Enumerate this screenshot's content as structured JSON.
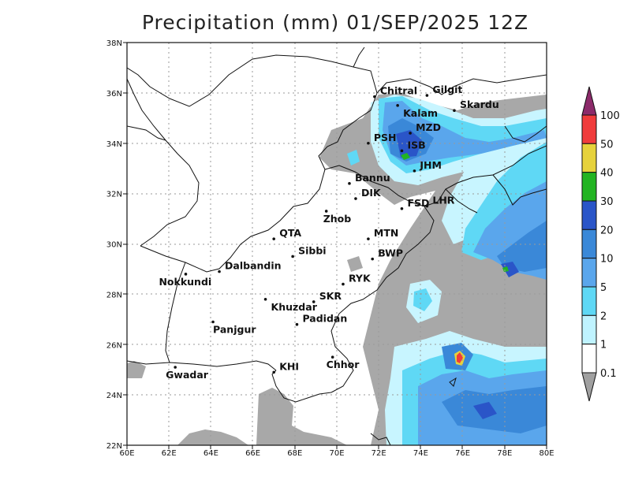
{
  "title": "Precipitation (mm) 01/SEP/2025 12Z",
  "axes": {
    "x_ticks": [
      "60E",
      "62E",
      "64E",
      "66E",
      "68E",
      "70E",
      "72E",
      "74E",
      "76E",
      "78E",
      "80E"
    ],
    "y_ticks": [
      "22N",
      "24N",
      "26N",
      "28N",
      "30N",
      "32N",
      "34N",
      "36N",
      "38N"
    ],
    "xlim": [
      60,
      80
    ],
    "ylim": [
      22,
      38
    ],
    "grid": true
  },
  "colorbar": {
    "levels": [
      "0.1",
      "1",
      "2",
      "5",
      "10",
      "20",
      "30",
      "40",
      "50",
      "100"
    ],
    "colors": [
      "#a0a0a0",
      "#ffffff",
      "#bff3ff",
      "#5fd8f5",
      "#5aa6ec",
      "#3a88d8",
      "#2a55c8",
      "#22b422",
      "#e6d23c",
      "#f03c3c",
      "#8c2a6a"
    ]
  },
  "cities": [
    {
      "name": "Chitral",
      "lon": 71.8,
      "lat": 35.85
    },
    {
      "name": "Gilgit",
      "lon": 74.3,
      "lat": 35.9
    },
    {
      "name": "Kalam",
      "lon": 72.9,
      "lat": 35.5
    },
    {
      "name": "Skardu",
      "lon": 75.6,
      "lat": 35.3
    },
    {
      "name": "MZD",
      "lon": 73.5,
      "lat": 34.4
    },
    {
      "name": "PSH",
      "lon": 71.5,
      "lat": 34.0
    },
    {
      "name": "ISB",
      "lon": 73.1,
      "lat": 33.7
    },
    {
      "name": "JHM",
      "lon": 73.7,
      "lat": 32.9
    },
    {
      "name": "Bannu",
      "lon": 70.6,
      "lat": 32.4
    },
    {
      "name": "DIK",
      "lon": 70.9,
      "lat": 31.8
    },
    {
      "name": "FSD",
      "lon": 73.1,
      "lat": 31.4
    },
    {
      "name": "LHR",
      "lon": 74.3,
      "lat": 31.5
    },
    {
      "name": "Zhob",
      "lon": 69.5,
      "lat": 31.3
    },
    {
      "name": "QTA",
      "lon": 67.0,
      "lat": 30.2
    },
    {
      "name": "MTN",
      "lon": 71.5,
      "lat": 30.2
    },
    {
      "name": "Sibbi",
      "lon": 67.9,
      "lat": 29.5
    },
    {
      "name": "BWP",
      "lon": 71.7,
      "lat": 29.4
    },
    {
      "name": "Dalbandin",
      "lon": 64.4,
      "lat": 28.9
    },
    {
      "name": "Nokkundi",
      "lon": 62.8,
      "lat": 28.8
    },
    {
      "name": "RYK",
      "lon": 70.3,
      "lat": 28.4
    },
    {
      "name": "Khuzdar",
      "lon": 66.6,
      "lat": 27.8
    },
    {
      "name": "SKR",
      "lon": 68.9,
      "lat": 27.7
    },
    {
      "name": "Padidan",
      "lon": 68.1,
      "lat": 26.8
    },
    {
      "name": "Panjgur",
      "lon": 64.1,
      "lat": 26.9
    },
    {
      "name": "Chhor",
      "lon": 69.8,
      "lat": 25.5
    },
    {
      "name": "KHI",
      "lon": 67.0,
      "lat": 24.9
    },
    {
      "name": "Gwadar",
      "lon": 62.3,
      "lat": 25.1
    }
  ],
  "label_offsets_hint": "east"
}
